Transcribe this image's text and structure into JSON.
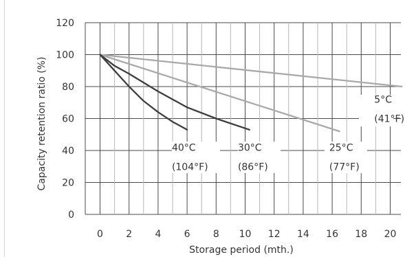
{
  "chart_data": {
    "type": "line",
    "xlabel": "Storage period (mth.)",
    "ylabel": "Capacity retention ratio (%)",
    "xlim": [
      0,
      21
    ],
    "ylim": [
      0,
      120
    ],
    "x_ticks": [
      0,
      2,
      4,
      6,
      8,
      10,
      12,
      14,
      16,
      18,
      20
    ],
    "y_ticks": [
      0,
      20,
      40,
      60,
      80,
      100,
      120
    ],
    "grid": true,
    "legend": "inline labels",
    "series": [
      {
        "label_line1": "40°C",
        "label_line2": "(104°F)",
        "color": "#3d3d3d",
        "points": [
          [
            0,
            100
          ],
          [
            1,
            90
          ],
          [
            2,
            80
          ],
          [
            3,
            71
          ],
          [
            4,
            64
          ],
          [
            5,
            58
          ],
          [
            6,
            53
          ]
        ]
      },
      {
        "label_line1": "30°C",
        "label_line2": "(86°F)",
        "color": "#3d3d3d",
        "points": [
          [
            0,
            100
          ],
          [
            1,
            93
          ],
          [
            2,
            88
          ],
          [
            4,
            77
          ],
          [
            6,
            67
          ],
          [
            8,
            60
          ],
          [
            10.3,
            53
          ]
        ]
      },
      {
        "label_line1": "25°C",
        "label_line2": "(77°F)",
        "color": "#a9a9a9",
        "points": [
          [
            0,
            100
          ],
          [
            16.5,
            52
          ]
        ]
      },
      {
        "label_line1": "5°C",
        "label_line2": "(41°F)",
        "color": "#a9a9a9",
        "points": [
          [
            0,
            100
          ],
          [
            20.8,
            80
          ]
        ]
      }
    ]
  }
}
